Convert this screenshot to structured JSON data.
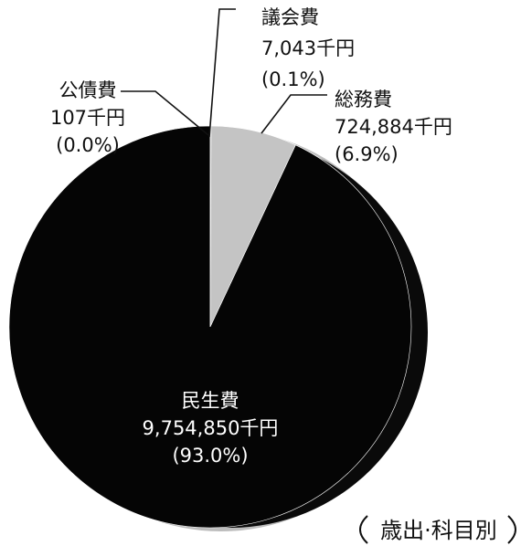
{
  "chart_data": {
    "type": "pie",
    "unit": "千円",
    "slices": [
      {
        "name": "議会費",
        "value": 7043,
        "value_text": "7,043千円",
        "percent_text": "(0.1%)",
        "color": "#cfcfcf"
      },
      {
        "name": "総務費",
        "value": 724884,
        "value_text": "724,884千円",
        "percent_text": "(6.9%)",
        "color": "#c4c4c4"
      },
      {
        "name": "民生費",
        "value": 9754850,
        "value_text": "9,754,850千円",
        "percent_text": "(93.0%)",
        "color": "#050505"
      },
      {
        "name": "公債費",
        "value": 107,
        "value_text": "107千円",
        "percent_text": "(0.0%)",
        "color": "#888888"
      }
    ],
    "badge": "歳出·科目別"
  }
}
